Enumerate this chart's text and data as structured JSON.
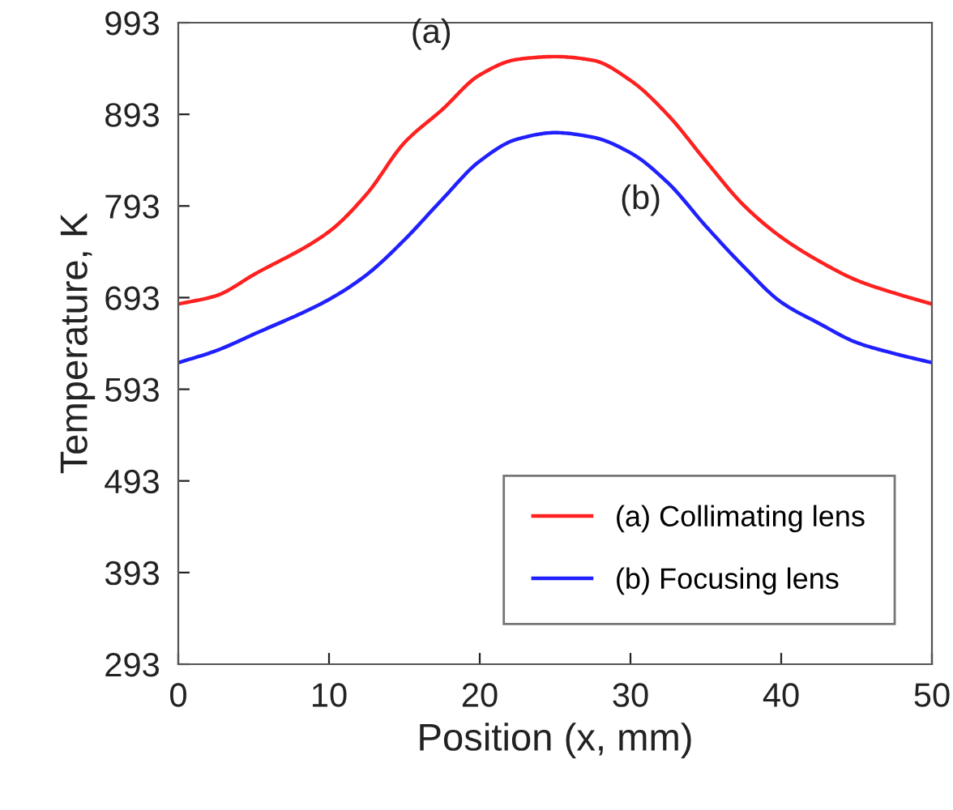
{
  "chart_data": {
    "type": "line",
    "xlabel": "Position (x, mm)",
    "ylabel": "Temperature, K",
    "x": [
      0,
      2.5,
      5,
      10,
      12.5,
      15,
      17.5,
      20,
      22.5,
      25,
      27.5,
      30,
      32.5,
      35,
      37.5,
      40,
      42.5,
      45,
      47.5,
      50
    ],
    "series": [
      {
        "name": "(a) Collimating lens",
        "color": "#ff2020",
        "values": [
          686,
          695,
          718,
          765,
          806,
          862,
          898,
          936,
          953,
          956,
          952,
          930,
          892,
          842,
          794,
          759,
          733,
          712,
          698,
          686
        ]
      },
      {
        "name": "(b) Focusing lens",
        "color": "#2020ff",
        "values": [
          622,
          635,
          653,
          691,
          718,
          756,
          800,
          842,
          866,
          873,
          868,
          851,
          818,
          771,
          727,
          688,
          665,
          644,
          632,
          622
        ]
      }
    ],
    "annotations": [
      "(a)",
      "(b)"
    ],
    "xlim": [
      0,
      50
    ],
    "ylim": [
      293,
      993
    ],
    "xticks": [
      0,
      10,
      20,
      30,
      40,
      50
    ],
    "yticks": [
      293,
      393,
      493,
      593,
      693,
      793,
      893,
      993
    ],
    "legend": "bottom right",
    "grid": false,
    "line_style": "solid"
  }
}
